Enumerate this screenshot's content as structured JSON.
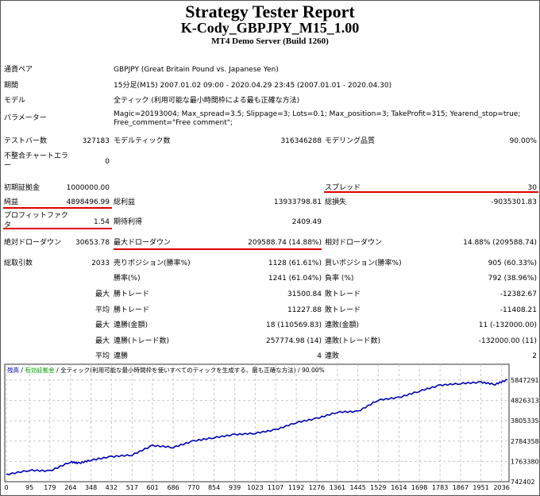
{
  "header": {
    "title": "Strategy Tester Report",
    "subtitle": "K-Cody_GBPJPY_M15_1.00",
    "server": "MT4 Demo Server (Build 1260)"
  },
  "info": [
    {
      "label": "通貨ペア",
      "value": "GBPJPY (Great Britain Pound vs. Japanese Yen)"
    },
    {
      "label": "期間",
      "value": "15分足(M15) 2007.01.02 09:00 - 2020.04.29 23:45 (2007.01.01 - 2020.04.30)"
    },
    {
      "label": "モデル",
      "value": "全ティック (利用可能な最小時間枠による最も正確な方法)"
    },
    {
      "label": "パラメーター",
      "value": "Magic=20193004; Max_spread=3.5; Slippage=3; Lots=0.1; Max_position=3; TakeProfit=315; Yearend_stop=true;",
      "value2": "Free_comment=\"Free comment\";"
    }
  ],
  "stats": {
    "bars_label": "テストバー数",
    "bars": "327183",
    "ticks_label": "モデルティック数",
    "ticks": "316346288",
    "quality_label": "モデリング品質",
    "quality": "90.00%",
    "mismatch_label1": "不整合チャートエラ",
    "mismatch_label2": "ー",
    "mismatch": "0",
    "deposit_label": "初期証拠金",
    "deposit": "1000000.00",
    "spread_label": "スプレッド",
    "spread": "30",
    "net_label": "純益",
    "net": "4898496.99",
    "gross_profit_label": "総利益",
    "gross_profit": "13933798.81",
    "gross_loss_label": "総損失",
    "gross_loss": "-9035301.83",
    "pf_label1": "プロフィットファク",
    "pf_label2": "タ",
    "pf": "1.54",
    "expected_label": "期待利得",
    "expected": "2409.49",
    "abs_dd_label": "絶対ドローダウン",
    "abs_dd": "30653.78",
    "max_dd_label": "最大ドローダウン",
    "max_dd": "209588.74 (14.88%)",
    "rel_dd_label": "相対ドローダウン",
    "rel_dd": "14.88% (209588.74)",
    "trades_label": "総取引数",
    "trades": "2033",
    "short_label": "売りポジション(勝率%)",
    "short": "1128 (61.61%)",
    "long_label": "買いポジション(勝率%)",
    "long": "905 (60.33%)",
    "win_label": "勝率(%)",
    "win": "1241 (61.04%)",
    "loss_label": "負率 (%)",
    "loss": "792 (38.96%)",
    "rows": [
      {
        "pre": "最大",
        "l1": "勝トレード",
        "v1": "31500.84",
        "l2": "敗トレード",
        "v2": "-12382.67"
      },
      {
        "pre": "平均",
        "l1": "勝トレード",
        "v1": "11227.88",
        "l2": "敗トレード",
        "v2": "-11408.21"
      },
      {
        "pre": "最大",
        "l1": "連勝(金額)",
        "v1": "18 (110569.83)",
        "l2": "連敗(金額)",
        "v2": "11 (-132000.00)"
      },
      {
        "pre": "最大",
        "l1": "連勝(トレード数)",
        "v1": "257774.98 (14)",
        "l2": "連敗(トレード数)",
        "v2": "-132000.00 (11)"
      },
      {
        "pre": "平均",
        "l1": "連勝",
        "v1": "4",
        "l2": "連敗",
        "v2": "2"
      }
    ]
  },
  "chart_data": {
    "type": "line",
    "legend": {
      "balance": "残高",
      "sep": " / ",
      "equity": "有効証拠金",
      "model": "全ティック(利用可能な最小時間枠を使いすべてのティックを生成する、最も正確な方法)",
      "quality": "90.00%"
    },
    "colors": {
      "line": "#0000b0",
      "balance": "#0000b0",
      "equity": "#00a000",
      "grid": "#c8c8c8"
    },
    "ylim": [
      742402,
      5847291
    ],
    "yticks": [
      "5847291",
      "4826313",
      "3805335",
      "2784358",
      "1763380",
      "742402"
    ],
    "xticks": [
      "0",
      "95",
      "179",
      "264",
      "348",
      "432",
      "517",
      "601",
      "686",
      "770",
      "854",
      "939",
      "1023",
      "1107",
      "1192",
      "1276",
      "1361",
      "1445",
      "1529",
      "1614",
      "1698",
      "1783",
      "1867",
      "1951",
      "2036"
    ],
    "x": [
      0,
      95,
      179,
      264,
      300,
      348,
      432,
      517,
      601,
      686,
      770,
      854,
      939,
      1023,
      1107,
      1192,
      1276,
      1361,
      1445,
      1529,
      1614,
      1698,
      1783,
      1867,
      1951,
      2010,
      2060
    ],
    "y": [
      1100000,
      1320000,
      1280000,
      1740000,
      1670000,
      1830000,
      2000000,
      2090000,
      2560000,
      2470000,
      2790000,
      2960000,
      3110000,
      3180000,
      3350000,
      3720000,
      3920000,
      4240000,
      4270000,
      4850000,
      4970000,
      5300000,
      5590000,
      5680000,
      5740000,
      5640000,
      5870000
    ]
  }
}
